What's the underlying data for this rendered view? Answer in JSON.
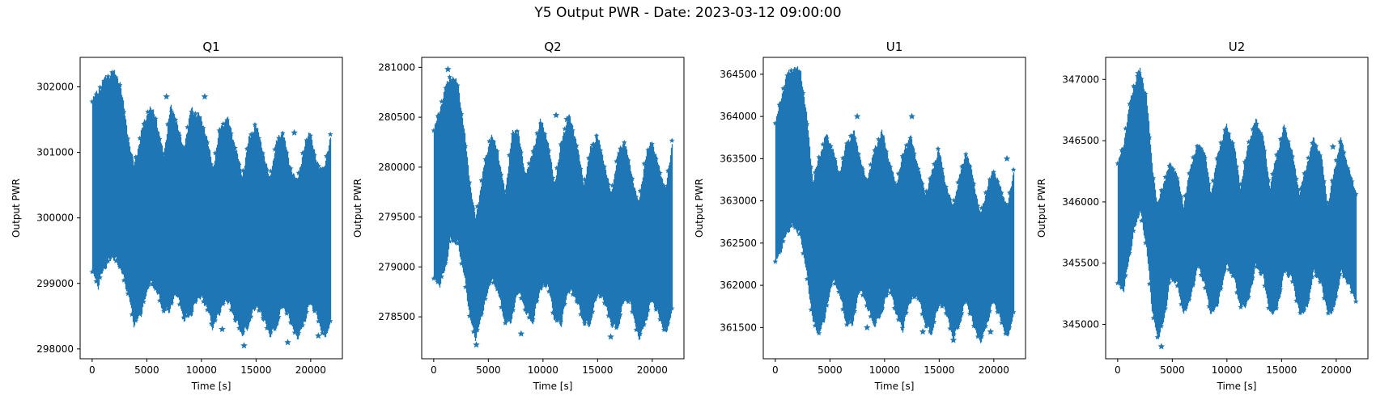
{
  "figure": {
    "title": "Y5 Output PWR - Date: 2023-03-12 09:00:00"
  },
  "chart_data": [
    {
      "type": "scatter",
      "title": "Q1",
      "xlabel": "Time [s]",
      "ylabel": "Output PWR",
      "marker": "star",
      "color": "#1f77b4",
      "xlim": [
        -1100,
        22900
      ],
      "ylim": [
        297850,
        302450
      ],
      "xticks": [
        0,
        5000,
        10000,
        15000,
        20000
      ],
      "yticks": [
        298000,
        299000,
        300000,
        301000,
        302000
      ],
      "x_range": [
        0,
        21800
      ],
      "envelope_x": [
        0,
        500,
        1000,
        1800,
        2500,
        3300,
        3800,
        4500,
        5200,
        5800,
        6500,
        7100,
        7700,
        8300,
        9000,
        9700,
        10400,
        11000,
        11600,
        12300,
        13000,
        13700,
        14300,
        14900,
        15500,
        16200,
        16800,
        17400,
        18000,
        18700,
        19300,
        19900,
        20500,
        21200,
        21800
      ],
      "upper": [
        301750,
        301900,
        302050,
        302200,
        302050,
        301150,
        300750,
        301300,
        301650,
        301500,
        300900,
        301650,
        301450,
        301000,
        301600,
        301550,
        301250,
        300700,
        301300,
        301500,
        301100,
        300600,
        301150,
        301400,
        301050,
        300550,
        301100,
        301300,
        300800,
        300500,
        301000,
        301300,
        300800,
        300700,
        301250
      ],
      "lower": [
        299200,
        299000,
        299250,
        299450,
        299300,
        298850,
        298400,
        298600,
        299050,
        298950,
        298600,
        298650,
        298900,
        298500,
        298550,
        298850,
        298700,
        298350,
        298600,
        298800,
        298500,
        298250,
        298400,
        298700,
        298550,
        298250,
        298350,
        298700,
        298500,
        298200,
        298400,
        298750,
        298550,
        298200,
        298450
      ],
      "outliers": [
        [
          6800,
          301850
        ],
        [
          10300,
          301850
        ],
        [
          11900,
          298300
        ],
        [
          13900,
          298050
        ],
        [
          18500,
          301300
        ],
        [
          17900,
          298100
        ],
        [
          20700,
          298200
        ],
        [
          1400,
          302100
        ]
      ]
    },
    {
      "type": "scatter",
      "title": "Q2",
      "xlabel": "Time [s]",
      "ylabel": "Output PWR",
      "marker": "star",
      "color": "#1f77b4",
      "xlim": [
        -1100,
        22900
      ],
      "ylim": [
        278080,
        281100
      ],
      "xticks": [
        0,
        5000,
        10000,
        15000,
        20000
      ],
      "yticks": [
        278500,
        279000,
        279500,
        280000,
        280500,
        281000
      ],
      "x_range": [
        0,
        21800
      ],
      "envelope_x": [
        0,
        500,
        1000,
        1500,
        2200,
        2800,
        3300,
        3800,
        4500,
        5200,
        5800,
        6500,
        7100,
        7700,
        8300,
        9000,
        9700,
        10400,
        11000,
        11600,
        12300,
        13000,
        13700,
        14300,
        14900,
        15500,
        16200,
        16800,
        17400,
        18000,
        18700,
        19300,
        19900,
        20500,
        21200,
        21800
      ],
      "upper": [
        280350,
        280550,
        280750,
        280900,
        280800,
        280300,
        279800,
        279450,
        279950,
        280300,
        280150,
        279700,
        280300,
        280350,
        279900,
        280100,
        280450,
        280250,
        279800,
        280200,
        280500,
        280250,
        279800,
        280150,
        280300,
        280050,
        279700,
        280100,
        280250,
        279950,
        279600,
        280050,
        280250,
        280000,
        279750,
        280250
      ],
      "lower": [
        278900,
        278850,
        279000,
        279300,
        279250,
        278900,
        278500,
        278300,
        278600,
        278900,
        278800,
        278450,
        278500,
        278800,
        278600,
        278450,
        278800,
        278850,
        278500,
        278450,
        278800,
        278700,
        278450,
        278450,
        278750,
        278700,
        278450,
        278400,
        278700,
        278650,
        278300,
        278450,
        278700,
        278550,
        278350,
        278600
      ],
      "outliers": [
        [
          1300,
          280980
        ],
        [
          3900,
          278220
        ],
        [
          8000,
          278330
        ],
        [
          11200,
          280520
        ],
        [
          16200,
          278300
        ],
        [
          12200,
          280480
        ]
      ]
    },
    {
      "type": "scatter",
      "title": "U1",
      "xlabel": "Time [s]",
      "ylabel": "Output PWR",
      "marker": "star",
      "color": "#1f77b4",
      "xlim": [
        -1100,
        22900
      ],
      "ylim": [
        361130,
        364700
      ],
      "xticks": [
        0,
        5000,
        10000,
        15000,
        20000
      ],
      "yticks": [
        361500,
        362000,
        362500,
        363000,
        363500,
        364000,
        364500
      ],
      "x_range": [
        0,
        21800
      ],
      "envelope_x": [
        0,
        500,
        1000,
        1600,
        2300,
        2900,
        3400,
        4000,
        4600,
        5200,
        5800,
        6500,
        7100,
        7700,
        8300,
        9000,
        9700,
        10400,
        11000,
        11600,
        12300,
        13000,
        13700,
        14300,
        14900,
        15500,
        16200,
        16800,
        17400,
        18000,
        18700,
        19300,
        19900,
        20500,
        21200,
        21800
      ],
      "upper": [
        363900,
        364200,
        364450,
        364550,
        364500,
        363900,
        363200,
        363500,
        363750,
        363600,
        363300,
        363650,
        363800,
        363500,
        363200,
        363550,
        363800,
        363450,
        363150,
        363500,
        363750,
        363400,
        363050,
        363300,
        363600,
        363200,
        362900,
        363250,
        363550,
        363300,
        362800,
        363100,
        363350,
        363150,
        362900,
        363350
      ],
      "lower": [
        362300,
        362450,
        362650,
        362750,
        362600,
        362100,
        361600,
        361450,
        361700,
        362100,
        361950,
        361550,
        361600,
        362000,
        361800,
        361550,
        361700,
        362000,
        361700,
        361500,
        361850,
        361900,
        361550,
        361450,
        361800,
        361750,
        361400,
        361550,
        361850,
        361600,
        361350,
        361550,
        361850,
        361650,
        361400,
        361700
      ],
      "outliers": [
        [
          7500,
          364000
        ],
        [
          12500,
          364000
        ],
        [
          13500,
          361450
        ],
        [
          16300,
          361350
        ],
        [
          19700,
          361450
        ],
        [
          21200,
          363500
        ],
        [
          8400,
          361500
        ]
      ]
    },
    {
      "type": "scatter",
      "title": "U2",
      "xlabel": "Time [s]",
      "ylabel": "Output PWR",
      "marker": "star",
      "color": "#1f77b4",
      "xlim": [
        -1100,
        22900
      ],
      "ylim": [
        344720,
        347180
      ],
      "xticks": [
        0,
        5000,
        10000,
        15000,
        20000
      ],
      "yticks": [
        345000,
        345500,
        346000,
        346500,
        347000
      ],
      "x_range": [
        0,
        21800
      ],
      "envelope_x": [
        0,
        500,
        1000,
        1500,
        2000,
        2600,
        3100,
        3600,
        4200,
        4800,
        5400,
        6000,
        6700,
        7300,
        7900,
        8500,
        9200,
        9900,
        10600,
        11200,
        11900,
        12600,
        13300,
        13900,
        14600,
        15200,
        15900,
        16600,
        17300,
        17900,
        18600,
        19200,
        19800,
        20400,
        21100,
        21800
      ],
      "upper": [
        346300,
        346450,
        346750,
        346950,
        347050,
        346850,
        346300,
        345950,
        346150,
        346300,
        346200,
        345950,
        346300,
        346450,
        346400,
        346050,
        346400,
        346600,
        346450,
        346100,
        346450,
        346650,
        346500,
        346100,
        346400,
        346600,
        346400,
        346050,
        346300,
        346500,
        346350,
        345950,
        346250,
        346500,
        346250,
        346050
      ],
      "lower": [
        345350,
        345300,
        345550,
        345800,
        345950,
        345650,
        345150,
        344900,
        345050,
        345400,
        345350,
        345100,
        345250,
        345500,
        345350,
        345100,
        345200,
        345500,
        345400,
        345150,
        345200,
        345500,
        345400,
        345100,
        345150,
        345450,
        345400,
        345100,
        345150,
        345450,
        345350,
        345100,
        345150,
        345450,
        345350,
        345200
      ],
      "outliers": [
        [
          4000,
          344820
        ],
        [
          1900,
          347050
        ],
        [
          6300,
          345200
        ],
        [
          19700,
          346450
        ]
      ]
    }
  ]
}
